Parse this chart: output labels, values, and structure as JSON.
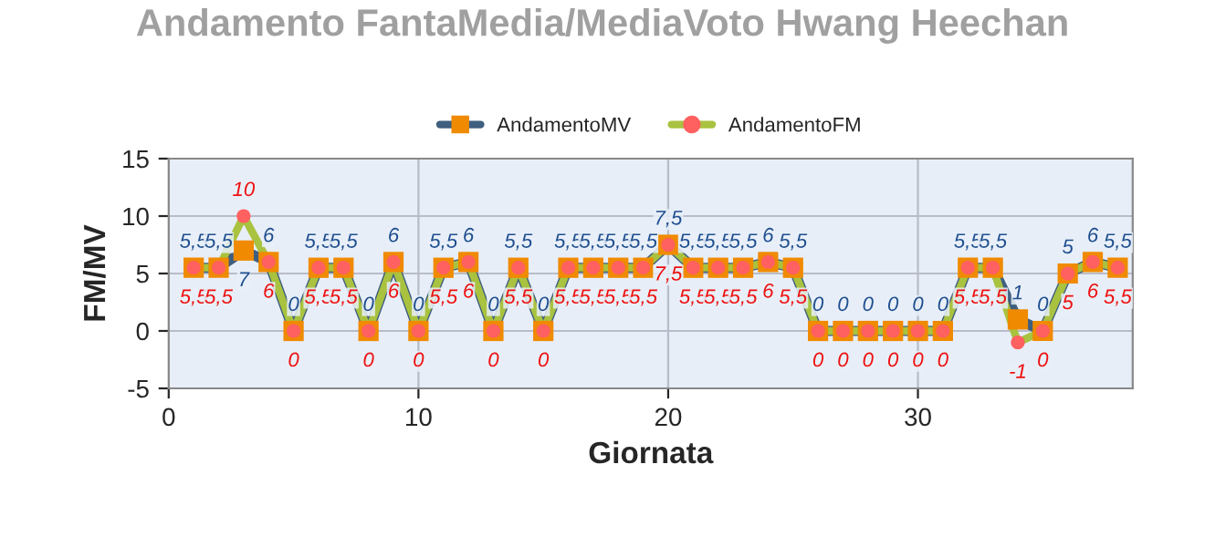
{
  "chart_data": {
    "type": "line",
    "title": "Andamento FantaMedia/MediaVoto Hwang Heechan",
    "xlabel": "Giornata",
    "ylabel": "FM/MV",
    "x": [
      1,
      2,
      3,
      4,
      5,
      6,
      7,
      8,
      9,
      10,
      11,
      12,
      13,
      14,
      15,
      16,
      17,
      18,
      19,
      20,
      21,
      22,
      23,
      24,
      25,
      26,
      27,
      28,
      29,
      30,
      31,
      32,
      33,
      34,
      35,
      36,
      37,
      38
    ],
    "series": [
      {
        "name": "AndamentoMV",
        "color": "#3f5f7f",
        "marker": "square",
        "colors": [
          "#f08a00",
          "#f08a00",
          "#f08a00",
          "#f08a00",
          "#f08a00",
          "#f08a00",
          "#f08a00",
          "#f08a00",
          "#f08a00",
          "#f08a00",
          "#f08a00",
          "#f08a00",
          "#f08a00",
          "#f08a00",
          "#f08a00",
          "#f08a00",
          "#f08a00",
          "#f08a00",
          "#f08a00",
          "#f08a00",
          "#f08a00",
          "#f08a00",
          "#f08a00",
          "#f08a00",
          "#f08a00",
          "#f08a00",
          "#f08a00",
          "#f08a00",
          "#f08a00",
          "#f08a00",
          "#f08a00",
          "#f08a00",
          "#f08a00",
          "#f08a00",
          "#f08a00",
          "#f08a00",
          "#f08a00",
          "#f08a00"
        ],
        "values": [
          5.5,
          5.5,
          7,
          6,
          0,
          5.5,
          5.5,
          0,
          6,
          0,
          5.5,
          6,
          0,
          5.5,
          0,
          5.5,
          5.5,
          5.5,
          5.5,
          7.5,
          5.5,
          5.5,
          5.5,
          6,
          5.5,
          0,
          0,
          0,
          0,
          0,
          0,
          5.5,
          5.5,
          1,
          0,
          5,
          6,
          5.5
        ],
        "value_labels": [
          "5,5",
          "5,5",
          "7",
          "6",
          "0",
          "5,5",
          "5,5",
          "0",
          "6",
          "0",
          "5,5",
          "6",
          "0",
          "5,5",
          "0",
          "5,5",
          "5,5",
          "5,5",
          "5,5",
          "7,5",
          "5,5",
          "5,5",
          "5,5",
          "6",
          "5,5",
          "0",
          "0",
          "0",
          "0",
          "0",
          "0",
          "5,5",
          "5,5",
          "1",
          "0",
          "5",
          "6",
          "5,5"
        ]
      },
      {
        "name": "AndamentoFM",
        "color": "#a9c23f",
        "marker": "circle",
        "colors": [
          "#ff6060",
          "#ff6060",
          "#ff6060",
          "#ff6060",
          "#ff6060",
          "#ff6060",
          "#ff6060",
          "#ff6060",
          "#ff6060",
          "#ff6060",
          "#ff6060",
          "#ff6060",
          "#ff6060",
          "#ff6060",
          "#ff6060",
          "#ff6060",
          "#ff6060",
          "#ff6060",
          "#ff6060",
          "#ff6060",
          "#ff6060",
          "#ff6060",
          "#ff6060",
          "#ff6060",
          "#ff6060",
          "#ff6060",
          "#ff6060",
          "#ff6060",
          "#ff6060",
          "#ff6060",
          "#ff6060",
          "#ff6060",
          "#ff6060",
          "#ff6060",
          "#ff6060",
          "#ff6060",
          "#ff6060",
          "#ff6060"
        ],
        "values": [
          5.5,
          5.5,
          10,
          6,
          0,
          5.5,
          5.5,
          0,
          6,
          0,
          5.5,
          6,
          0,
          5.5,
          0,
          5.5,
          5.5,
          5.5,
          5.5,
          7.5,
          5.5,
          5.5,
          5.5,
          6,
          5.5,
          0,
          0,
          0,
          0,
          0,
          0,
          5.5,
          5.5,
          -1,
          0,
          5,
          6,
          5.5
        ],
        "value_labels": [
          "5,5",
          "5,5",
          "10",
          "6",
          "0",
          "5,5",
          "5,5",
          "0",
          "6",
          "0",
          "5,5",
          "6",
          "0",
          "5,5",
          "0",
          "5,5",
          "5,5",
          "5,5",
          "5,5",
          "7,5",
          "5,5",
          "5,5",
          "5,5",
          "6",
          "5,5",
          "0",
          "0",
          "0",
          "0",
          "0",
          "0",
          "5,5",
          "5,5",
          "-1",
          "0",
          "5",
          "6",
          "5,5"
        ]
      }
    ],
    "xlim": [
      0,
      38.6
    ],
    "xticks": [
      0,
      10,
      20,
      30
    ],
    "ylim": [
      -5,
      15
    ],
    "yticks": [
      -5,
      0,
      5,
      10,
      15
    ],
    "grid": true,
    "legend": "top"
  }
}
